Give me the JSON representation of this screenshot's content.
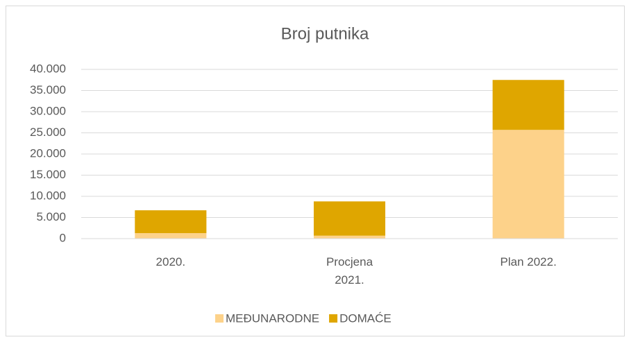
{
  "chart_data": {
    "type": "stacked_bar",
    "title": "Broj putnika",
    "categories": [
      "2020.",
      "Procjena 2021.",
      "Plan 2022."
    ],
    "series": [
      {
        "name": "MEĐUNARODNE",
        "color": "#fdd28a",
        "values": [
          1300,
          700,
          25700
        ]
      },
      {
        "name": "DOMAĆE",
        "color": "#dfa600",
        "values": [
          5400,
          8100,
          11800
        ]
      }
    ],
    "ylim": [
      0,
      40000
    ],
    "yticks": [
      0,
      {
        "value": 5000,
        "label": "5.000"
      },
      {
        "value": 10000,
        "label": "10.000"
      },
      {
        "value": 15000,
        "label": "15.000"
      },
      {
        "value": 20000,
        "label": "20.000"
      },
      {
        "value": 25000,
        "label": "25.000"
      },
      {
        "value": 30000,
        "label": "30.000"
      },
      {
        "value": 35000,
        "label": "35.000"
      },
      {
        "value": 40000,
        "label": "40.000"
      }
    ],
    "grid": true,
    "legend": "bottom"
  }
}
